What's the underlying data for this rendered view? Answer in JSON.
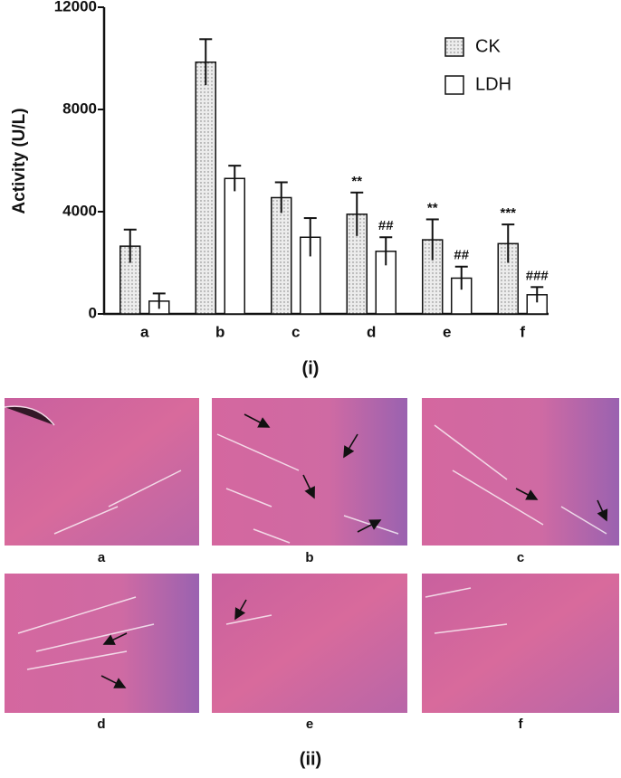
{
  "chart_data": {
    "type": "bar",
    "panel_label": "(i)",
    "ylabel": "Activity (U/L)",
    "categories": [
      "a",
      "b",
      "c",
      "d",
      "e",
      "f"
    ],
    "series": [
      {
        "name": "CK",
        "color": "#e6e6e6",
        "values": [
          2650,
          9850,
          4550,
          3900,
          2900,
          2750
        ],
        "errors": [
          650,
          900,
          600,
          850,
          800,
          750
        ],
        "annotations": [
          null,
          null,
          null,
          "**",
          "**",
          "***"
        ]
      },
      {
        "name": "LDH",
        "color": "#ffffff",
        "values": [
          500,
          5300,
          3000,
          2450,
          1400,
          750
        ],
        "errors": [
          300,
          500,
          750,
          550,
          450,
          300
        ],
        "annotations": [
          null,
          null,
          null,
          "##",
          "##",
          "###"
        ]
      }
    ],
    "ylim": [
      0,
      12000
    ],
    "yticks": [
      0,
      4000,
      8000,
      12000
    ],
    "grid": false
  },
  "figure_ii": {
    "label": "(ii)",
    "panels": [
      "a",
      "b",
      "c",
      "d",
      "e",
      "f"
    ]
  }
}
